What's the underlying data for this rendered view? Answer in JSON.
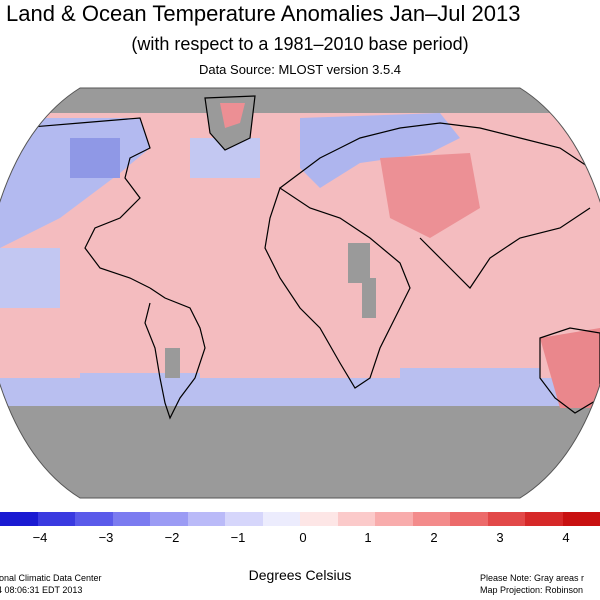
{
  "title": "Land & Ocean Temperature Anomalies Jan–Jul 2013",
  "subtitle": "(with respect to a 1981–2010 base period)",
  "source": "Data Source: MLOST version 3.5.4",
  "legend": {
    "unit": "Degrees Celsius",
    "ticks": [
      "−4",
      "−3",
      "−2",
      "−1",
      "0",
      "1",
      "2",
      "3",
      "4"
    ],
    "colors": [
      "#1a1ad2",
      "#3a3ae0",
      "#5a5aea",
      "#7b7bf0",
      "#9b9bf4",
      "#babaf8",
      "#d6d6fb",
      "#ececfd",
      "#fde6e6",
      "#fbcaca",
      "#f8acac",
      "#f38b8b",
      "#ec6a6a",
      "#e24848",
      "#d62828",
      "#c81010"
    ]
  },
  "footer_left": [
    "ional Climatic Data Center",
    "4 08:06:31 EDT 2013"
  ],
  "footer_right": [
    "Please Note: Gray areas r",
    "Map Projection: Robinson"
  ],
  "map_colors": {
    "missing": "#9a9a9a",
    "warm": "#f4b3b6",
    "warmer": "#ec8f94",
    "cool": "#b8bff0",
    "cooler": "#8e98e6",
    "coast": "#000000"
  }
}
